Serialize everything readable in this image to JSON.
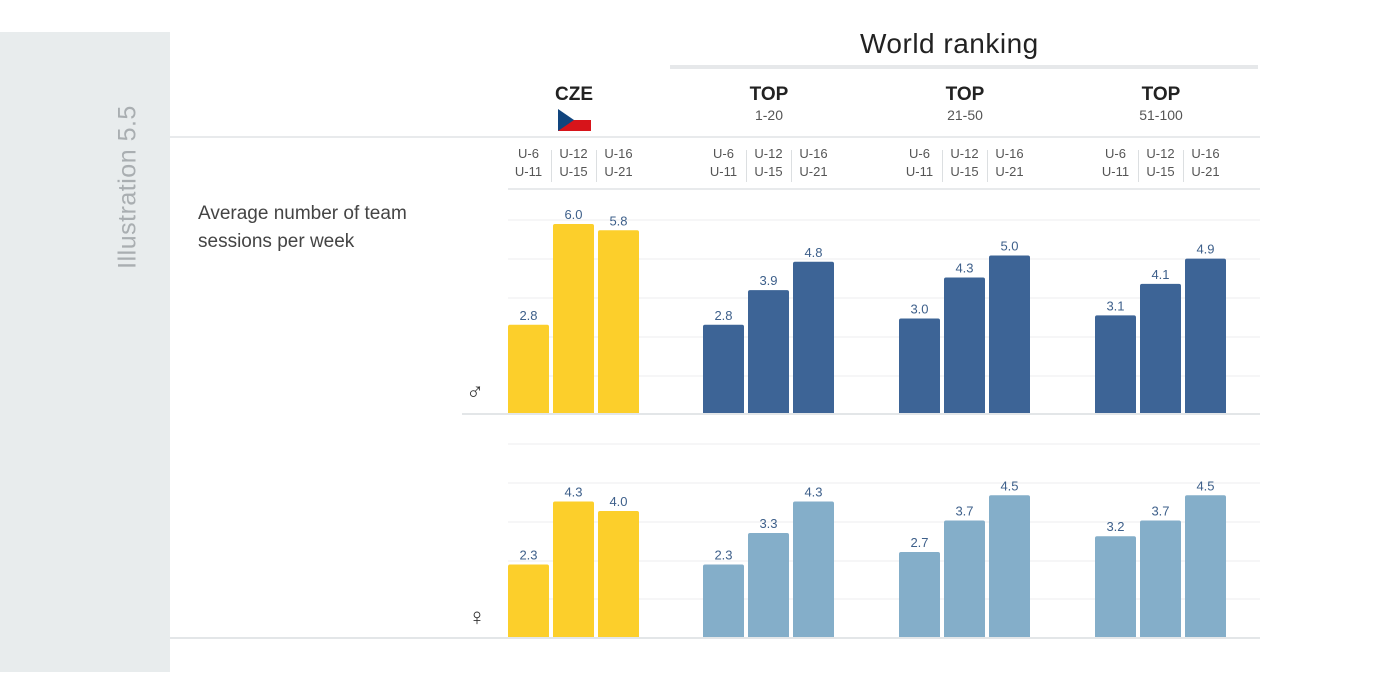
{
  "side_label": "Illustration 5.5",
  "world_ranking": "World ranking",
  "groups": [
    {
      "title": "CZE",
      "sub": ""
    },
    {
      "title": "TOP",
      "sub": "1-20"
    },
    {
      "title": "TOP",
      "sub": "21-50"
    },
    {
      "title": "TOP",
      "sub": "51-100"
    }
  ],
  "age_groups": [
    {
      "top": "U-6",
      "bottom": "U-11"
    },
    {
      "top": "U-12",
      "bottom": "U-15"
    },
    {
      "top": "U-16",
      "bottom": "U-21"
    }
  ],
  "metric_label_line1": "Average number of team",
  "metric_label_line2": "sessions per week",
  "male_symbol": "♂",
  "female_symbol": "♀",
  "colors": {
    "cze": "#fccf2b",
    "male_top": "#3d6496",
    "female_top": "#84aec9",
    "value_label": "#3d5f8a"
  },
  "chart_data": [
    {
      "type": "bar",
      "panel": "male",
      "categories": [
        "CZE",
        "TOP 1-20",
        "TOP 21-50",
        "TOP 51-100"
      ],
      "series": [
        {
          "name": "U-6 U-11",
          "values": [
            2.8,
            2.8,
            3.0,
            3.1
          ]
        },
        {
          "name": "U-12 U-15",
          "values": [
            6.0,
            3.9,
            4.3,
            4.1
          ]
        },
        {
          "name": "U-16 U-21",
          "values": [
            5.8,
            4.8,
            5.0,
            4.9
          ]
        }
      ],
      "ylim": [
        0,
        6
      ]
    },
    {
      "type": "bar",
      "panel": "female",
      "categories": [
        "CZE",
        "TOP 1-20",
        "TOP 21-50",
        "TOP 51-100"
      ],
      "series": [
        {
          "name": "U-6 U-11",
          "values": [
            2.3,
            2.3,
            2.7,
            3.2
          ]
        },
        {
          "name": "U-12 U-15",
          "values": [
            4.3,
            3.3,
            3.7,
            3.7
          ]
        },
        {
          "name": "U-16 U-21",
          "values": [
            4.0,
            4.3,
            4.5,
            4.5
          ]
        }
      ],
      "ylim": [
        0,
        4.5
      ]
    }
  ]
}
